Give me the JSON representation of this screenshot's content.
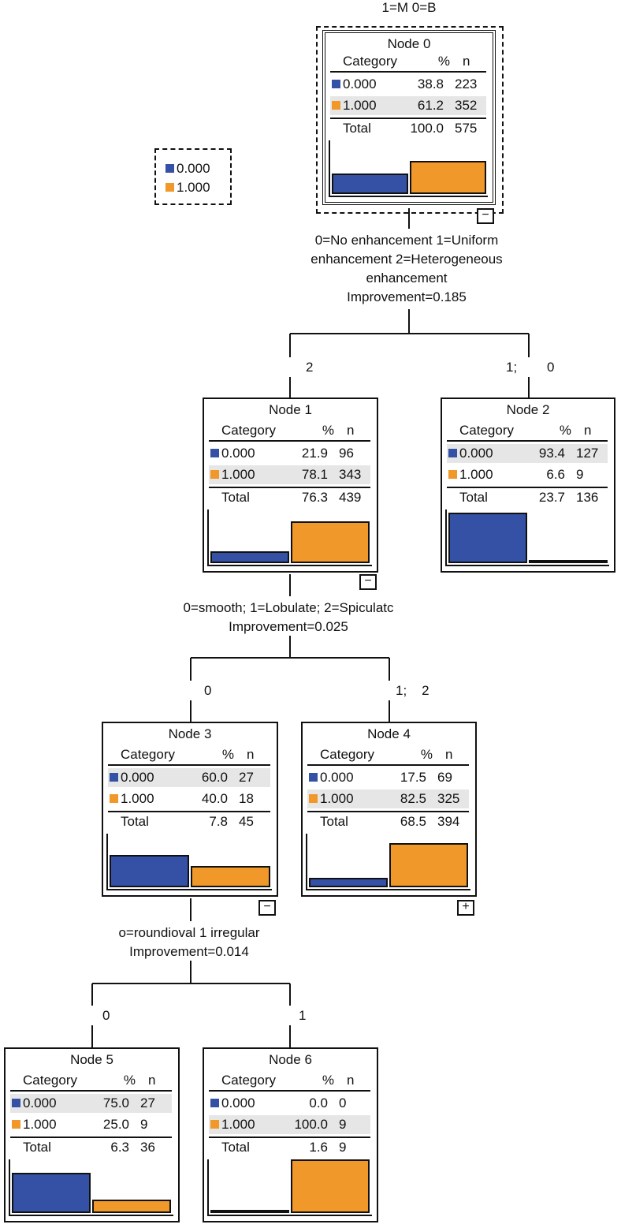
{
  "target_label": "1=M 0=B",
  "colors": {
    "cat0": "#3451A6",
    "cat1": "#F0982A"
  },
  "legend": {
    "items": [
      "0.000",
      "1.000"
    ]
  },
  "header": {
    "category": "Category",
    "pct": "%",
    "n": "n"
  },
  "total_label": "Total",
  "nodes": [
    {
      "id": "Node 0",
      "rows": [
        [
          "0.000",
          "38.8",
          "223"
        ],
        [
          "1.000",
          "61.2",
          "352"
        ]
      ],
      "total": [
        "100.0",
        "575"
      ],
      "toggle": "−"
    },
    {
      "id": "Node 1",
      "rows": [
        [
          "0.000",
          "21.9",
          "96"
        ],
        [
          "1.000",
          "78.1",
          "343"
        ]
      ],
      "total": [
        "76.3",
        "439"
      ],
      "toggle": "−"
    },
    {
      "id": "Node 2",
      "rows": [
        [
          "0.000",
          "93.4",
          "127"
        ],
        [
          "1.000",
          "6.6",
          "9"
        ]
      ],
      "total": [
        "23.7",
        "136"
      ],
      "toggle": ""
    },
    {
      "id": "Node 3",
      "rows": [
        [
          "0.000",
          "60.0",
          "27"
        ],
        [
          "1.000",
          "40.0",
          "18"
        ]
      ],
      "total": [
        "7.8",
        "45"
      ],
      "toggle": "−"
    },
    {
      "id": "Node 4",
      "rows": [
        [
          "0.000",
          "17.5",
          "69"
        ],
        [
          "1.000",
          "82.5",
          "325"
        ]
      ],
      "total": [
        "68.5",
        "394"
      ],
      "toggle": "+"
    },
    {
      "id": "Node 5",
      "rows": [
        [
          "0.000",
          "75.0",
          "27"
        ],
        [
          "1.000",
          "25.0",
          "9"
        ]
      ],
      "total": [
        "6.3",
        "36"
      ],
      "toggle": ""
    },
    {
      "id": "Node 6",
      "rows": [
        [
          "0.000",
          "0.0",
          "0"
        ],
        [
          "1.000",
          "100.0",
          "9"
        ]
      ],
      "total": [
        "1.6",
        "9"
      ],
      "toggle": ""
    }
  ],
  "splits": [
    {
      "lines": [
        "0=No enhancement 1=Uniform",
        "enhancement 2=Heterogeneous",
        "enhancement",
        "Improvement=0.185"
      ],
      "left_label": "2",
      "right_label": "1;        0"
    },
    {
      "lines": [
        "0=smooth; 1=Lobulate; 2=Spiculatc",
        "Improvement=0.025"
      ],
      "left_label": "0",
      "right_label": "1;    2"
    },
    {
      "lines": [
        "o=roundioval 1 irregular",
        "Improvement=0.014"
      ],
      "left_label": "0",
      "right_label": "1"
    }
  ]
}
